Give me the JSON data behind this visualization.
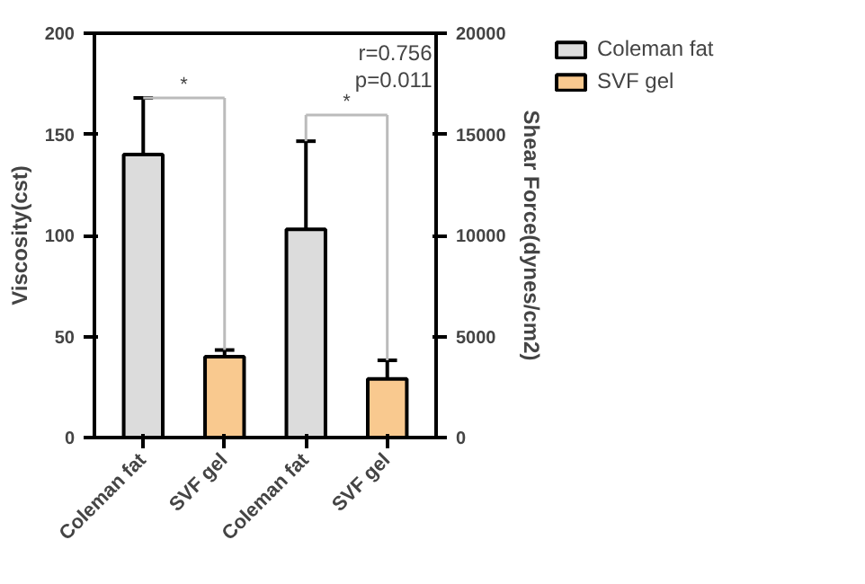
{
  "chart_data": {
    "type": "bar",
    "categories": [
      "Coleman fat",
      "SVF gel",
      "Coleman fat",
      "SVF gel"
    ],
    "ylabel": "Viscosity(cst)",
    "y2label": "Shear Force(dynes/cm2)",
    "ylim": [
      0,
      200
    ],
    "yticks": [
      0,
      50,
      100,
      150,
      200
    ],
    "y2lim": [
      0,
      20000
    ],
    "y2ticks": [
      0,
      5000,
      10000,
      15000,
      20000
    ],
    "series": [
      {
        "name": "Coleman fat",
        "color": "#dcdcdc",
        "values": [
          140,
          null,
          null,
          null
        ],
        "errors": [
          [
            140,
            168
          ],
          null,
          null,
          null
        ]
      },
      {
        "name": "SVF gel",
        "color": "#f9c98f",
        "values": [
          null,
          40,
          null,
          null
        ],
        "errors": [
          null,
          [
            40,
            43.3
          ],
          null,
          null
        ]
      },
      {
        "color": "#dcdcdc",
        "axis": "y2",
        "values": [
          null,
          null,
          10300,
          null
        ],
        "errors": [
          null,
          null,
          [
            10300,
            14660
          ],
          null
        ]
      },
      {
        "color": "#f9c98f",
        "axis": "y2",
        "values": [
          null,
          null,
          null,
          2900
        ],
        "errors": [
          null,
          null,
          null,
          [
            2900,
            3820
          ]
        ]
      }
    ],
    "annotations": [
      "*",
      "*",
      "r=0.756",
      "p=0.011"
    ],
    "legend": "top right",
    "grid": false
  }
}
